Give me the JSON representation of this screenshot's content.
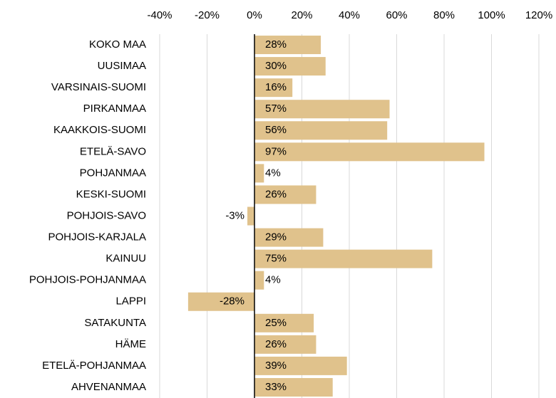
{
  "chart_data": {
    "type": "bar",
    "orientation": "horizontal",
    "categories": [
      "KOKO MAA",
      "UUSIMAA",
      "VARSINAIS-SUOMI",
      "PIRKANMAA",
      "KAAKKOIS-SUOMI",
      "ETELÄ-SAVO",
      "POHJANMAA",
      "KESKI-SUOMI",
      "POHJOIS-SAVO",
      "POHJOIS-KARJALA",
      "KAINUU",
      "POHJOIS-POHJANMAA",
      "LAPPI",
      "SATAKUNTA",
      "HÄME",
      "ETELÄ-POHJANMAA",
      "AHVENANMAA"
    ],
    "values": [
      28,
      30,
      16,
      57,
      56,
      97,
      4,
      26,
      -3,
      29,
      75,
      4,
      -28,
      25,
      26,
      39,
      33
    ],
    "value_labels": [
      "28%",
      "30%",
      "16%",
      "57%",
      "56%",
      "97%",
      "4%",
      "26%",
      "-3%",
      "29%",
      "75%",
      "4%",
      "-28%",
      "25%",
      "26%",
      "39%",
      "33%"
    ],
    "color": "#e0c28c",
    "xlim": [
      -40,
      120
    ],
    "xticks": [
      {
        "value": -40,
        "label": "-40%"
      },
      {
        "value": -20,
        "label": "-20%"
      },
      {
        "value": 0,
        "label": "0%"
      },
      {
        "value": 20,
        "label": "20%"
      },
      {
        "value": 40,
        "label": "40%"
      },
      {
        "value": 60,
        "label": "60%"
      },
      {
        "value": 80,
        "label": "80%"
      },
      {
        "value": 100,
        "label": "100%"
      },
      {
        "value": 120,
        "label": "120%"
      }
    ],
    "grid": true
  }
}
